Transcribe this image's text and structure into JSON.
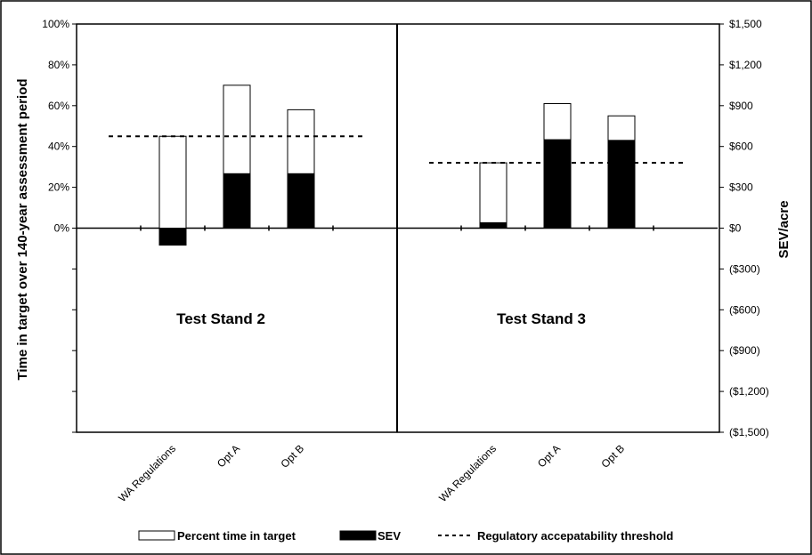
{
  "chart_data": {
    "type": "bar",
    "y_left_label": "Time in target over 140-year assessment period",
    "y_right_label": "SEV/acre",
    "y_left_ticks": [
      "100%",
      "80%",
      "60%",
      "40%",
      "20%",
      "0%"
    ],
    "y_left_tick_values": [
      100,
      80,
      60,
      40,
      20,
      0
    ],
    "y_right_ticks": [
      "$1,500",
      "$1,200",
      "$900",
      "$600",
      "$300",
      "$0",
      "($300)",
      "($600)",
      "($900)",
      "($1,200)",
      "($1,500)"
    ],
    "y_right_tick_values": [
      1500,
      1200,
      900,
      600,
      300,
      0,
      -300,
      -600,
      -900,
      -1200,
      -1500
    ],
    "y_left_range": [
      -100,
      100
    ],
    "y_right_range": [
      -1500,
      1500
    ],
    "categories": [
      "WA Regulations",
      "Opt A",
      "Opt B"
    ],
    "panels": [
      {
        "label": "Test Stand 2",
        "percent_time_in_target": [
          45,
          70,
          58
        ],
        "sev": [
          -125,
          400,
          400
        ],
        "threshold_percent": 45
      },
      {
        "label": "Test Stand 3",
        "percent_time_in_target": [
          32,
          61,
          55
        ],
        "sev": [
          40,
          650,
          645
        ],
        "threshold_percent": 32
      }
    ],
    "legend": [
      {
        "name": "Percent time in target",
        "style": "white-bar"
      },
      {
        "name": "SEV",
        "style": "black-bar"
      },
      {
        "name": "Regulatory accepatability threshold",
        "style": "dashed-line"
      }
    ],
    "colors": {
      "target_bar": "#ffffff",
      "sev_bar": "#000000",
      "threshold": "#000000"
    }
  }
}
